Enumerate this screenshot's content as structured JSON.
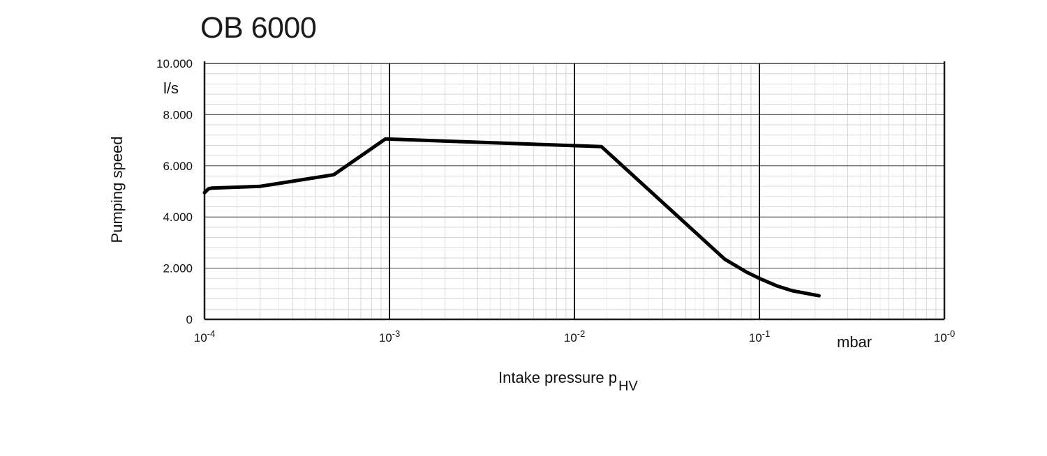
{
  "chart_data": {
    "type": "line",
    "title": "OB 6000",
    "ylabel": "Pumping speed",
    "yunit": "l/s",
    "xlabel": "Intake pressure p",
    "xlabel_sub": "HV",
    "xunit": "mbar",
    "xscale": "log",
    "xlim": [
      0.0001,
      1
    ],
    "ylim": [
      0,
      10000
    ],
    "grid": true,
    "y_ticks": [
      {
        "value": 0,
        "label": "0"
      },
      {
        "value": 2000,
        "label": "2.000"
      },
      {
        "value": 4000,
        "label": "4.000"
      },
      {
        "value": 6000,
        "label": "6.000"
      },
      {
        "value": 8000,
        "label": "8.000"
      },
      {
        "value": 10000,
        "label": "10.000"
      }
    ],
    "x_ticks": [
      {
        "value": 0.0001,
        "base": "10",
        "exp": "-4"
      },
      {
        "value": 0.001,
        "base": "10",
        "exp": "-3"
      },
      {
        "value": 0.01,
        "base": "10",
        "exp": "-2"
      },
      {
        "value": 0.1,
        "base": "10",
        "exp": "-1"
      },
      {
        "value": 1,
        "base": "10",
        "exp": "-0"
      }
    ],
    "series": [
      {
        "color": "#000000",
        "points": [
          [
            0.0001,
            4950
          ],
          [
            0.000105,
            5100
          ],
          [
            0.00011,
            5130
          ],
          [
            0.0002,
            5200
          ],
          [
            0.0005,
            5650
          ],
          [
            0.00095,
            7050
          ],
          [
            0.014,
            6750
          ],
          [
            0.065,
            2350
          ],
          [
            0.085,
            1850
          ],
          [
            0.1,
            1600
          ],
          [
            0.125,
            1300
          ],
          [
            0.15,
            1120
          ],
          [
            0.21,
            920
          ]
        ]
      }
    ]
  }
}
